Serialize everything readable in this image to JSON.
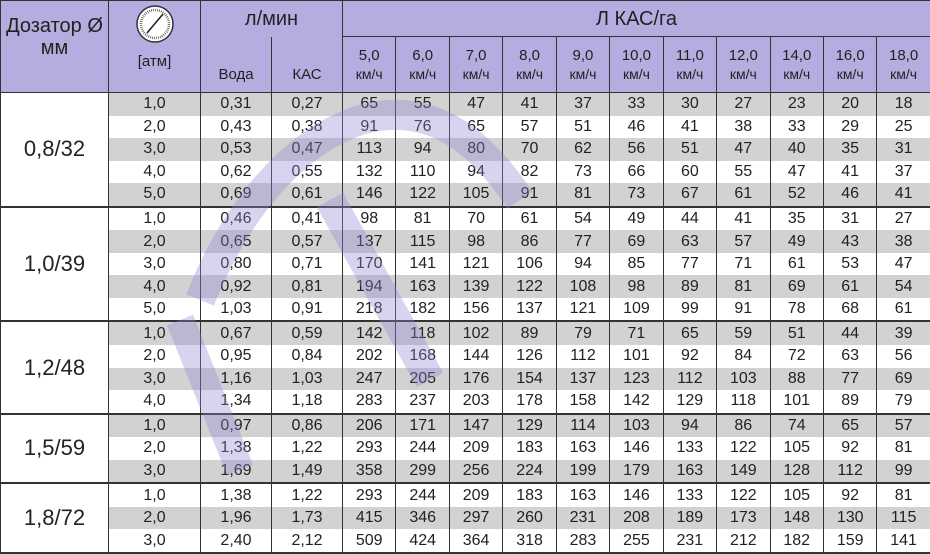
{
  "header": {
    "nozzle_label": "Дозатор Ø мм",
    "pressure_icon": "pressure-gauge-icon",
    "pressure_unit": "[атм]",
    "flow_label": "л/мин",
    "water_label": "Вода",
    "kas_label": "КАС",
    "rate_label": "Л КАС/га",
    "speeds": [
      "5,0",
      "6,0",
      "7,0",
      "8,0",
      "9,0",
      "10,0",
      "11,0",
      "12,0",
      "14,0",
      "16,0",
      "18,0"
    ],
    "speed_unit": "км/ч"
  },
  "colors": {
    "header_bg": "#b3aedf",
    "stripe": "#d2d2d2",
    "watermark": "#b3aedf"
  },
  "groups": [
    {
      "nozzle": "0,8/32",
      "rows": [
        [
          "1,0",
          "0,31",
          "0,27",
          "65",
          "55",
          "47",
          "41",
          "37",
          "33",
          "30",
          "27",
          "23",
          "20",
          "18"
        ],
        [
          "2,0",
          "0,43",
          "0,38",
          "91",
          "76",
          "65",
          "57",
          "51",
          "46",
          "41",
          "38",
          "33",
          "29",
          "25"
        ],
        [
          "3,0",
          "0,53",
          "0,47",
          "113",
          "94",
          "80",
          "70",
          "62",
          "56",
          "51",
          "47",
          "40",
          "35",
          "31"
        ],
        [
          "4,0",
          "0,62",
          "0,55",
          "132",
          "110",
          "94",
          "82",
          "73",
          "66",
          "60",
          "55",
          "47",
          "41",
          "37"
        ],
        [
          "5,0",
          "0,69",
          "0,61",
          "146",
          "122",
          "105",
          "91",
          "81",
          "73",
          "67",
          "61",
          "52",
          "46",
          "41"
        ]
      ]
    },
    {
      "nozzle": "1,0/39",
      "rows": [
        [
          "1,0",
          "0,46",
          "0,41",
          "98",
          "81",
          "70",
          "61",
          "54",
          "49",
          "44",
          "41",
          "35",
          "31",
          "27"
        ],
        [
          "2,0",
          "0,65",
          "0,57",
          "137",
          "115",
          "98",
          "86",
          "77",
          "69",
          "63",
          "57",
          "49",
          "43",
          "38"
        ],
        [
          "3,0",
          "0,80",
          "0,71",
          "170",
          "141",
          "121",
          "106",
          "94",
          "85",
          "77",
          "71",
          "61",
          "53",
          "47"
        ],
        [
          "4,0",
          "0,92",
          "0,81",
          "194",
          "163",
          "139",
          "122",
          "108",
          "98",
          "89",
          "81",
          "69",
          "61",
          "54"
        ],
        [
          "5,0",
          "1,03",
          "0,91",
          "218",
          "182",
          "156",
          "137",
          "121",
          "109",
          "99",
          "91",
          "78",
          "68",
          "61"
        ]
      ]
    },
    {
      "nozzle": "1,2/48",
      "rows": [
        [
          "1,0",
          "0,67",
          "0,59",
          "142",
          "118",
          "102",
          "89",
          "79",
          "71",
          "65",
          "59",
          "51",
          "44",
          "39"
        ],
        [
          "2,0",
          "0,95",
          "0,84",
          "202",
          "168",
          "144",
          "126",
          "112",
          "101",
          "92",
          "84",
          "72",
          "63",
          "56"
        ],
        [
          "3,0",
          "1,16",
          "1,03",
          "247",
          "205",
          "176",
          "154",
          "137",
          "123",
          "112",
          "103",
          "88",
          "77",
          "69"
        ],
        [
          "4,0",
          "1,34",
          "1,18",
          "283",
          "237",
          "203",
          "178",
          "158",
          "142",
          "129",
          "118",
          "101",
          "89",
          "79"
        ]
      ]
    },
    {
      "nozzle": "1,5/59",
      "rows": [
        [
          "1,0",
          "0,97",
          "0,86",
          "206",
          "171",
          "147",
          "129",
          "114",
          "103",
          "94",
          "86",
          "74",
          "65",
          "57"
        ],
        [
          "2,0",
          "1,38",
          "1,22",
          "293",
          "244",
          "209",
          "183",
          "163",
          "146",
          "133",
          "122",
          "105",
          "92",
          "81"
        ],
        [
          "3,0",
          "1,69",
          "1,49",
          "358",
          "299",
          "256",
          "224",
          "199",
          "179",
          "163",
          "149",
          "128",
          "112",
          "99"
        ]
      ]
    },
    {
      "nozzle": "1,8/72",
      "rows": [
        [
          "1,0",
          "1,38",
          "1,22",
          "293",
          "244",
          "209",
          "183",
          "163",
          "146",
          "133",
          "122",
          "105",
          "92",
          "81"
        ],
        [
          "2,0",
          "1,96",
          "1,73",
          "415",
          "346",
          "297",
          "260",
          "231",
          "208",
          "189",
          "173",
          "148",
          "130",
          "115"
        ],
        [
          "3,0",
          "2,40",
          "2,12",
          "509",
          "424",
          "364",
          "318",
          "283",
          "255",
          "231",
          "212",
          "182",
          "159",
          "141"
        ]
      ]
    }
  ]
}
